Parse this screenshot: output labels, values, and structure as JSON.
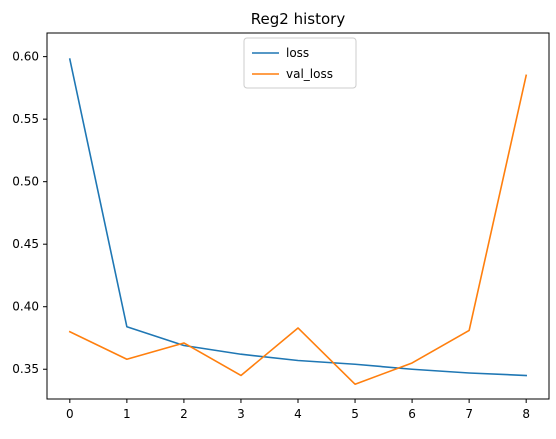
{
  "chart_data": {
    "type": "line",
    "title": "Reg2 history",
    "xlabel": "",
    "ylabel": "",
    "x": [
      0,
      1,
      2,
      3,
      4,
      5,
      6,
      7,
      8
    ],
    "xticks": [
      "0",
      "1",
      "2",
      "3",
      "4",
      "5",
      "6",
      "7",
      "8"
    ],
    "yticks": [
      "0.35",
      "0.40",
      "0.45",
      "0.50",
      "0.55",
      "0.60"
    ],
    "xlim": [
      -0.4,
      8.4
    ],
    "ylim": [
      0.3262,
      0.6189
    ],
    "grid": false,
    "legend": "upper center",
    "series": [
      {
        "name": "loss",
        "color": "#1f77b4",
        "values": [
          0.598,
          0.384,
          0.369,
          0.362,
          0.357,
          0.354,
          0.35,
          0.347,
          0.345
        ]
      },
      {
        "name": "val_loss",
        "color": "#ff7f0e",
        "values": [
          0.38,
          0.358,
          0.371,
          0.345,
          0.383,
          0.338,
          0.355,
          0.381,
          0.585
        ]
      }
    ]
  }
}
